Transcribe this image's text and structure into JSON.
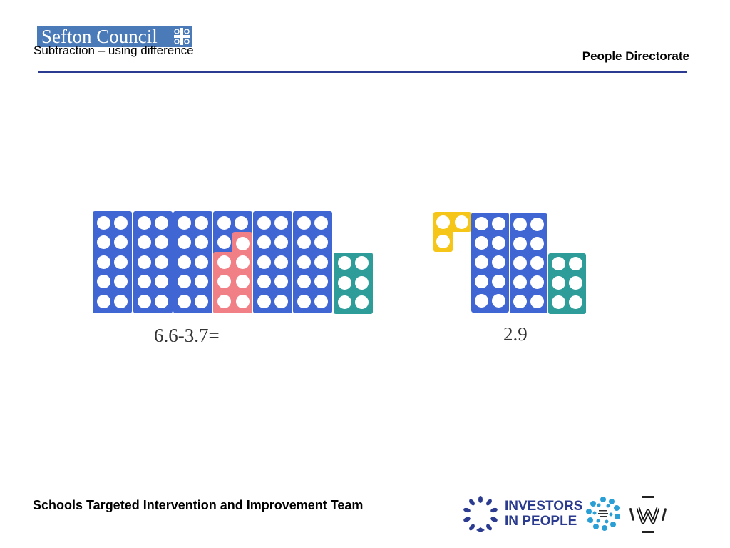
{
  "header": {
    "logo_text": "Sefton Council",
    "subtitle": "Subtraction – using difference",
    "directorate": "People Directorate"
  },
  "colors": {
    "blue_rod": "#3f66d3",
    "pink_rod": "#f07f86",
    "teal_rod": "#2e9d99",
    "yellow_rod": "#f5c518",
    "rule": "#2b3b8f",
    "logo_bg": "#4a7ab8"
  },
  "main": {
    "left_equation": "6.6-3.7=",
    "right_answer": "2.9"
  },
  "footer": {
    "team": "Schools Targeted Intervention and Improvement Team",
    "iip_line1": "INVESTORS",
    "iip_line2": "IN PEOPLE"
  }
}
